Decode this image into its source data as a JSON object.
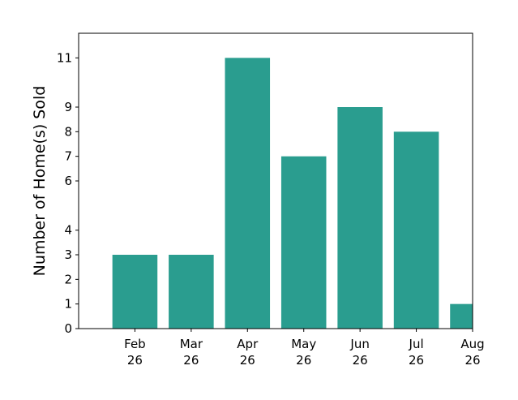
{
  "chart_data": {
    "type": "bar",
    "title": "",
    "xlabel": "",
    "ylabel": "Number of Home(s) Sold",
    "categories": [
      "Feb 26",
      "Mar 26",
      "Apr 26",
      "May 26",
      "Jun 26",
      "Jul 26",
      "Aug 26"
    ],
    "values": [
      3,
      3,
      11,
      7,
      9,
      8,
      1
    ],
    "ylim": [
      0,
      12
    ],
    "yticks": [
      0,
      1,
      2,
      3,
      4,
      6,
      7,
      8,
      9,
      11
    ],
    "xlim": [
      0,
      7
    ],
    "grid": false,
    "bar_color": "#2a9d8f"
  }
}
